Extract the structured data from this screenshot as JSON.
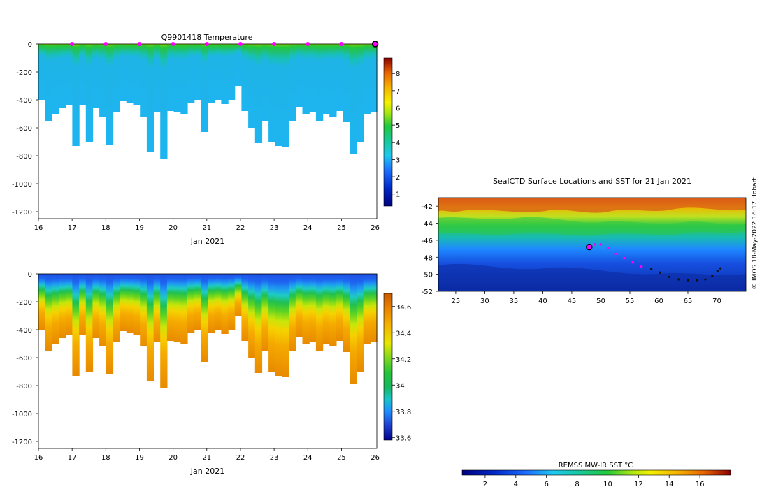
{
  "chart_data": [
    {
      "type": "heatmap",
      "id": "temperature-section",
      "title": "Q9901418  Temperature",
      "xlabel": "Jan 2021",
      "x_ticks": [
        "16",
        "17",
        "18",
        "19",
        "20",
        "21",
        "22",
        "23",
        "24",
        "25",
        "26"
      ],
      "xlim": [
        16,
        26.05
      ],
      "y_ticks": [
        "0",
        "-200",
        "-400",
        "-600",
        "-800",
        "-1000",
        "-1200"
      ],
      "ylim": [
        -1250,
        0
      ],
      "profile_times": [
        16.1,
        16.4,
        16.6,
        16.8,
        17.0,
        17.2,
        17.4,
        17.6,
        17.8,
        18.0,
        18.2,
        18.4,
        18.6,
        18.8,
        19.0,
        19.2,
        19.4,
        19.6,
        19.8,
        20.0,
        20.2,
        20.4,
        20.6,
        20.8,
        21.0,
        21.2,
        21.4,
        21.6,
        21.8,
        22.0,
        22.2,
        22.4,
        22.6,
        22.8,
        23.0,
        23.2,
        23.4,
        23.6,
        23.8,
        24.0,
        24.2,
        24.4,
        24.6,
        24.8,
        25.0,
        25.2,
        25.4,
        25.6,
        25.8,
        26.0
      ],
      "profile_max_depth": [
        400,
        550,
        500,
        460,
        440,
        730,
        440,
        700,
        460,
        520,
        720,
        490,
        410,
        420,
        440,
        520,
        770,
        490,
        820,
        480,
        490,
        500,
        420,
        400,
        630,
        420,
        400,
        430,
        400,
        300,
        480,
        600,
        710,
        550,
        700,
        730,
        740,
        550,
        450,
        500,
        490,
        550,
        500,
        520,
        480,
        560,
        790,
        700,
        500,
        490
      ],
      "surface_locations": [
        17,
        18,
        19,
        20,
        21,
        22,
        23,
        24,
        25
      ],
      "current_location": 26,
      "colorbar": {
        "ticks": [
          "1",
          "2",
          "3",
          "4",
          "5",
          "6",
          "7",
          "8"
        ],
        "range": [
          0.3,
          8.9
        ]
      }
    },
    {
      "type": "heatmap",
      "id": "salinity-section",
      "title": "",
      "xlabel": "Jan 2021",
      "x_ticks": [
        "16",
        "17",
        "18",
        "19",
        "20",
        "21",
        "22",
        "23",
        "24",
        "25",
        "26"
      ],
      "xlim": [
        16,
        26.05
      ],
      "y_ticks": [
        "0",
        "-200",
        "-400",
        "-600",
        "-800",
        "-1000",
        "-1200"
      ],
      "ylim": [
        -1250,
        0
      ],
      "colorbar": {
        "ticks": [
          "33.6",
          "33.8",
          "34",
          "34.2",
          "34.4",
          "34.6"
        ],
        "range": [
          33.58,
          34.7
        ]
      }
    },
    {
      "type": "heatmap",
      "id": "sst-map",
      "title": "SealCTD Surface Locations and SST for 21 Jan 2021",
      "x_ticks": [
        "25",
        "30",
        "35",
        "40",
        "45",
        "50",
        "55",
        "60",
        "65",
        "70"
      ],
      "xlim": [
        22,
        75
      ],
      "y_ticks": [
        "-42",
        "-44",
        "-46",
        "-48",
        "-50",
        "-52"
      ],
      "ylim": [
        -52,
        -41
      ],
      "track": [
        [
          48,
          -46.8
        ],
        [
          49,
          -46.5
        ],
        [
          50,
          -46.5
        ],
        [
          51.3,
          -46.9
        ],
        [
          52.5,
          -47.6
        ],
        [
          54,
          -48.1
        ],
        [
          55.5,
          -48.6
        ],
        [
          57,
          -49.1
        ],
        [
          58.7,
          -49.4
        ],
        [
          60.2,
          -49.8
        ],
        [
          61.8,
          -50.3
        ],
        [
          63.4,
          -50.6
        ],
        [
          65,
          -50.7
        ],
        [
          66.6,
          -50.7
        ],
        [
          68,
          -50.6
        ],
        [
          69.2,
          -50.2
        ],
        [
          70.1,
          -49.6
        ],
        [
          70.6,
          -49.3
        ]
      ],
      "track_recent": [
        [
          49,
          -46.5
        ],
        [
          50,
          -46.5
        ],
        [
          51.3,
          -46.9
        ],
        [
          52.5,
          -47.6
        ],
        [
          54,
          -48.1
        ],
        [
          55.5,
          -48.6
        ],
        [
          57,
          -49.1
        ]
      ],
      "current_position": [
        48,
        -46.8
      ],
      "colorbar": {
        "title": "REMSS MW-IR SST °C",
        "ticks": [
          "2",
          "4",
          "6",
          "8",
          "10",
          "12",
          "14",
          "16"
        ],
        "range": [
          0.5,
          18
        ]
      }
    }
  ],
  "credit": "© IMOS 18-May-2022 16:17 Hobart"
}
